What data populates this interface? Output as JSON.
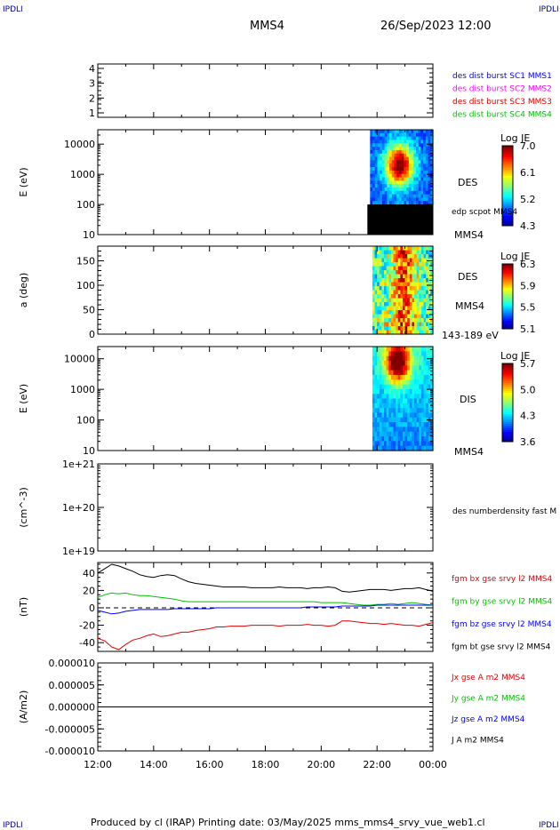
{
  "corner_label": "IPDLI",
  "header": {
    "spacecraft": "MMS4",
    "datetime": "26/Sep/2023 12:00"
  },
  "footer": {
    "text": "Produced by cl (IRAP)   Printing date: 03/May/2025   mms_mms4_srvy_vue_web1.cl"
  },
  "colors": {
    "blue": "#0000ff",
    "magenta": "#ff00ff",
    "red": "#e00000",
    "green": "#00c000",
    "black": "#000000"
  },
  "chart_data": [
    {
      "type": "line",
      "panel": "burst-flags",
      "y_ticks": [
        "1",
        "2",
        "3",
        "4"
      ],
      "ylim": [
        0.7,
        4.3
      ],
      "legend": [
        {
          "name": "des dist burst SC1 MMS1",
          "color": "#0000ff"
        },
        {
          "name": "des dist burst SC2 MMS2",
          "color": "#ff00ff"
        },
        {
          "name": "des dist burst SC3 MMS3",
          "color": "#e00000"
        },
        {
          "name": "des dist burst SC4 MMS4",
          "color": "#00c000"
        }
      ]
    },
    {
      "type": "heatmap",
      "panel": "des-energy",
      "ylabel": "E (eV)",
      "y_scale": "log",
      "y_ticks": [
        "10",
        "100",
        "1000",
        "10000"
      ],
      "ylim": [
        10,
        30000
      ],
      "data_start": "21:45",
      "data_end": "00:00",
      "colorbar": {
        "title": "Log JE",
        "ticks": [
          "7.0",
          "6.1",
          "5.2",
          "4.3"
        ]
      },
      "labels": {
        "instrument": "DES",
        "extra": "edp scpot MMS4",
        "spacecraft": "MMS4"
      }
    },
    {
      "type": "heatmap",
      "panel": "des-pitch",
      "ylabel": "a (deg)",
      "y_ticks": [
        "0",
        "50",
        "100",
        "150"
      ],
      "ylim": [
        0,
        180
      ],
      "data_start": "21:50",
      "data_end": "00:00",
      "colorbar": {
        "title": "Log JE",
        "ticks": [
          "6.3",
          "5.9",
          "5.5",
          "5.1"
        ]
      },
      "labels": {
        "instrument": "DES",
        "spacecraft": "MMS4",
        "energy_range": "143-189 eV"
      }
    },
    {
      "type": "heatmap",
      "panel": "dis-energy",
      "ylabel": "E (eV)",
      "y_scale": "log",
      "y_ticks": [
        "10",
        "100",
        "1000",
        "10000"
      ],
      "ylim": [
        10,
        25000
      ],
      "data_start": "21:50",
      "data_end": "00:00",
      "colorbar": {
        "title": "Log JE",
        "ticks": [
          "5.7",
          "5.0",
          "4.3",
          "3.6"
        ]
      },
      "labels": {
        "instrument": "DIS",
        "spacecraft": "MMS4"
      }
    },
    {
      "type": "line",
      "panel": "density",
      "ylabel": "(cm^-3)",
      "y_scale": "log",
      "y_ticks": [
        "1e+19",
        "1e+20",
        "1e+21"
      ],
      "legend": [
        {
          "name": "des numberdensity fast M",
          "color": "#000000"
        }
      ]
    },
    {
      "type": "line",
      "panel": "magnetic-field",
      "ylabel": "(nT)",
      "y_ticks": [
        "-40",
        "-20",
        "0",
        "20",
        "40"
      ],
      "ylim": [
        -50,
        52
      ],
      "x_hours": [
        0,
        0.25,
        0.5,
        0.75,
        1,
        1.25,
        1.5,
        1.75,
        2,
        2.25,
        2.5,
        2.75,
        3,
        3.25,
        3.5,
        3.75,
        4,
        4.25,
        4.5,
        4.75,
        5,
        5.25,
        5.5,
        5.75,
        6,
        6.25,
        6.5,
        6.75,
        7,
        7.25,
        7.5,
        7.75,
        8,
        8.25,
        8.5,
        8.75,
        9,
        9.25,
        9.5,
        9.75,
        10,
        10.25,
        10.5,
        10.75,
        11,
        11.25,
        11.5,
        11.75,
        12
      ],
      "series": [
        {
          "name": "fgm bx gse srvy l2 MMS4",
          "color": "#e00000",
          "values": [
            -35,
            -38,
            -45,
            -48,
            -42,
            -37,
            -35,
            -32,
            -30,
            -33,
            -32,
            -30,
            -28,
            -28,
            -26,
            -25,
            -24,
            -22,
            -22,
            -21,
            -21,
            -21,
            -20,
            -20,
            -20,
            -20,
            -21,
            -20,
            -20,
            -20,
            -19,
            -20,
            -20,
            -21,
            -20,
            -15,
            -15,
            -16,
            -17,
            -18,
            -18,
            -19,
            -18,
            -19,
            -20,
            -20,
            -21,
            -19,
            -17
          ]
        },
        {
          "name": "fgm by gse srvy l2 MMS4",
          "color": "#00c000",
          "values": [
            12,
            15,
            17,
            16,
            17,
            15,
            14,
            14,
            13,
            12,
            11,
            10,
            8,
            7,
            7,
            7,
            7,
            7,
            7,
            7,
            7,
            7,
            7,
            7,
            7,
            7,
            7,
            7,
            7,
            7,
            7,
            7,
            6,
            6,
            6,
            6,
            5,
            4,
            3,
            3,
            4,
            4,
            5,
            4,
            5,
            6,
            5,
            4,
            3
          ]
        },
        {
          "name": "fgm bz gse srvy l2 MMS4",
          "color": "#0000ff",
          "values": [
            -3,
            -5,
            -7,
            -6,
            -4,
            -3,
            -2,
            -2,
            -2,
            -2,
            -2,
            -1,
            -1,
            -1,
            -1,
            -1,
            -1,
            0,
            0,
            0,
            0,
            0,
            0,
            0,
            0,
            0,
            0,
            0,
            0,
            0,
            1,
            1,
            1,
            1,
            1,
            2,
            2,
            2,
            2,
            2,
            3,
            3,
            3,
            3,
            3,
            3,
            3,
            3,
            3
          ]
        },
        {
          "name": "fgm bt gse srvy l2 MMS4",
          "color": "#000000",
          "values": [
            40,
            45,
            50,
            48,
            45,
            42,
            38,
            36,
            35,
            37,
            38,
            37,
            33,
            30,
            28,
            27,
            26,
            25,
            24,
            24,
            24,
            24,
            23,
            23,
            23,
            23,
            24,
            23,
            23,
            23,
            22,
            23,
            23,
            24,
            23,
            19,
            18,
            19,
            20,
            21,
            21,
            21,
            20,
            21,
            22,
            22,
            23,
            21,
            19
          ]
        }
      ]
    },
    {
      "type": "line",
      "panel": "current-density",
      "ylabel": "(A/m2)",
      "y_ticks": [
        "-0.000010",
        "-0.000005",
        "0.000000",
        "0.000005",
        "0.000010"
      ],
      "ylim": [
        -1e-05,
        1e-05
      ],
      "legend": [
        {
          "name": "Jx gse A m2 MMS4",
          "color": "#e00000"
        },
        {
          "name": "Jy gse A m2 MMS4",
          "color": "#00c000"
        },
        {
          "name": "Jz gse A m2 MMS4",
          "color": "#0000ff"
        },
        {
          "name": "J A m2 MMS4",
          "color": "#000000"
        }
      ]
    }
  ],
  "x_axis": {
    "ticks": [
      "12:00",
      "14:00",
      "16:00",
      "18:00",
      "20:00",
      "22:00",
      "00:00"
    ]
  }
}
